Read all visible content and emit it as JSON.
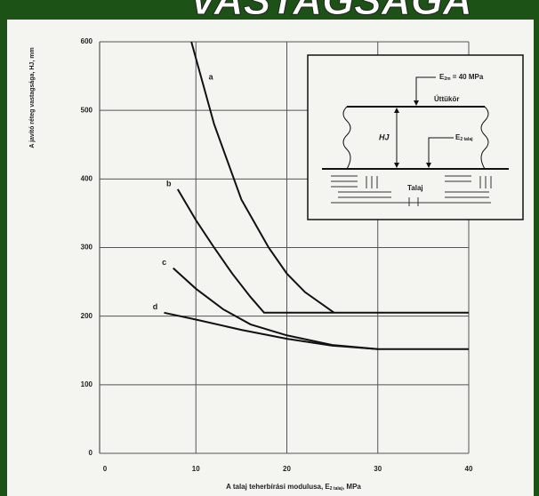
{
  "slide_title": "VASTAGSÁGA",
  "chart_data": {
    "type": "line",
    "y_label": "A javító réteg vastagsága, HJ, mm",
    "x_label": {
      "main": "A talaj teherbírási modulusa, E",
      "subscript": "2 talaj",
      "unit": ", MPa"
    },
    "xlim": [
      0,
      40
    ],
    "xticks": [
      0,
      10,
      20,
      30,
      40
    ],
    "ylim": [
      0,
      600
    ],
    "yticks": [
      0,
      100,
      200,
      300,
      400,
      500,
      600
    ],
    "grid": true,
    "color": "#111111",
    "series": [
      {
        "name": "a",
        "x": [
          9.5,
          12,
          15,
          18,
          20,
          22,
          25.2
        ],
        "values": [
          600,
          480,
          370,
          300,
          262,
          235,
          205
        ]
      },
      {
        "name": "b",
        "x": [
          8,
          10,
          12,
          14,
          16,
          17.5,
          40
        ],
        "values": [
          385,
          340,
          300,
          262,
          228,
          205,
          205
        ]
      },
      {
        "name": "c",
        "x": [
          7.5,
          10,
          13,
          16,
          20,
          25,
          30,
          40
        ],
        "values": [
          270,
          240,
          210,
          188,
          172,
          158,
          152,
          152
        ]
      },
      {
        "name": "d",
        "x": [
          6.5,
          10,
          15,
          20,
          25,
          30
        ],
        "values": [
          205,
          195,
          180,
          167,
          157,
          152
        ]
      }
    ],
    "inset": {
      "load_symbol": "E",
      "load_subscript": "2m",
      "load_rest": " = 40 MPa",
      "surface": "Úttükör",
      "thickness": "HJ",
      "soil_symbol": "E",
      "soil_subscript": "2 talaj",
      "soil": "Talaj"
    }
  }
}
